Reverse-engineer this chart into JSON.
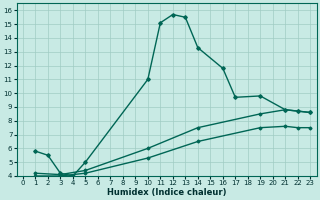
{
  "xlabel": "Humidex (Indice chaleur)",
  "background_color": "#c8eae4",
  "line_color": "#006655",
  "grid_color": "#a0ccc4",
  "xlim": [
    -0.5,
    23.5
  ],
  "ylim": [
    4,
    16.5
  ],
  "xticks": [
    0,
    1,
    2,
    3,
    4,
    5,
    6,
    7,
    8,
    9,
    10,
    11,
    12,
    13,
    14,
    15,
    16,
    17,
    18,
    19,
    20,
    21,
    22,
    23
  ],
  "yticks": [
    4,
    5,
    6,
    7,
    8,
    9,
    10,
    11,
    12,
    13,
    14,
    15,
    16
  ],
  "curve1_x": [
    1,
    2,
    3,
    4,
    5,
    10,
    11,
    12,
    13,
    14,
    16,
    17,
    19,
    21,
    22,
    23
  ],
  "curve1_y": [
    5.8,
    5.5,
    4.2,
    4.0,
    5.0,
    11.0,
    15.1,
    15.7,
    15.5,
    13.3,
    11.8,
    9.7,
    9.8,
    8.8,
    8.7,
    8.6
  ],
  "curve2_x": [
    1,
    3,
    5,
    10,
    14,
    19,
    21,
    22,
    23
  ],
  "curve2_y": [
    4.2,
    4.1,
    4.4,
    6.0,
    7.5,
    8.5,
    8.8,
    8.7,
    8.6
  ],
  "curve3_x": [
    1,
    3,
    5,
    10,
    14,
    19,
    21,
    22,
    23
  ],
  "curve3_y": [
    4.0,
    4.0,
    4.2,
    5.3,
    6.5,
    7.5,
    7.6,
    7.5,
    7.5
  ]
}
